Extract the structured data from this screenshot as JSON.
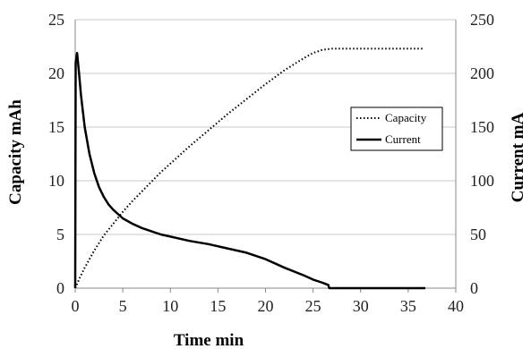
{
  "chart_data": {
    "type": "line",
    "title": "",
    "xlabel": "Time min",
    "ylabel_left": "Capacity mAh",
    "ylabel_right": "Current  mA",
    "xlim": [
      0,
      40
    ],
    "ylim_left": [
      0,
      25
    ],
    "ylim_right": [
      0,
      250
    ],
    "x_ticks": [
      "0",
      "5",
      "10",
      "15",
      "20",
      "25",
      "30",
      "35",
      "40"
    ],
    "y_left_ticks": [
      "0",
      "5",
      "10",
      "15",
      "20",
      "25"
    ],
    "y_right_ticks": [
      "0",
      "50",
      "100",
      "150",
      "200",
      "250"
    ],
    "grid": "horizontal",
    "legend_position": "right",
    "legend": [
      "Capacity",
      "Current"
    ],
    "series": [
      {
        "name": "Capacity",
        "axis": "left",
        "style": "dotted",
        "x": [
          0,
          0.5,
          1,
          2,
          3,
          4,
          5,
          6,
          7,
          8,
          9,
          10,
          12,
          14,
          16,
          18,
          20,
          22,
          24,
          25,
          26,
          27,
          28,
          30,
          32,
          34,
          36.5
        ],
        "y": [
          0,
          1.0,
          1.9,
          3.5,
          4.9,
          6.0,
          7.1,
          8.1,
          9.0,
          9.9,
          10.8,
          11.6,
          13.2,
          14.7,
          16.2,
          17.6,
          19.0,
          20.3,
          21.4,
          21.9,
          22.2,
          22.3,
          22.3,
          22.3,
          22.3,
          22.3,
          22.3
        ]
      },
      {
        "name": "Current",
        "axis": "right",
        "style": "solid",
        "x": [
          0,
          0.05,
          0.2,
          0.4,
          0.6,
          0.8,
          1,
          1.5,
          2,
          2.5,
          3,
          3.5,
          4,
          5,
          6,
          7,
          8,
          9,
          10,
          12,
          14,
          16,
          18,
          20,
          22,
          24,
          25,
          26,
          26.6,
          26.7,
          28,
          30,
          32,
          34,
          36.8
        ],
        "y": [
          0,
          210,
          219,
          200,
          180,
          165,
          150,
          125,
          107,
          94,
          85,
          78,
          73,
          65,
          60,
          56,
          53,
          50,
          48,
          44,
          41,
          37,
          33,
          27,
          19,
          12,
          8,
          5,
          3,
          0,
          0,
          0,
          0,
          0,
          0
        ]
      }
    ]
  },
  "colors": {
    "line": "#000000",
    "grid": "#c8c8c8",
    "axis": "#888888",
    "background": "#ffffff"
  }
}
